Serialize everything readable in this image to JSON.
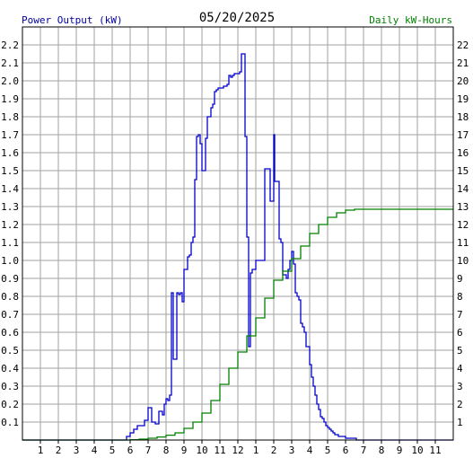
{
  "header": {
    "left_label": "Power Output (kW)",
    "date": "05/20/2025",
    "right_label": "Daily kW-Hours"
  },
  "colors": {
    "left_label": "#0000a0",
    "right_label": "#008000",
    "power_line": "#0000c8",
    "energy_line": "#008000",
    "grid": "#a0a0a0",
    "frame": "#000000"
  },
  "chart_data": {
    "type": "line",
    "title": "05/20/2025",
    "xlabel": "",
    "ylabel": "Power Output (kW)",
    "y2label": "Daily kW-Hours",
    "x_tick_labels": [
      "1",
      "2",
      "3",
      "4",
      "5",
      "6",
      "7",
      "8",
      "9",
      "10",
      "11",
      "12",
      "1",
      "2",
      "3",
      "4",
      "5",
      "6",
      "7",
      "8",
      "9",
      "10",
      "11"
    ],
    "xlim": [
      0,
      24
    ],
    "ylim": [
      0,
      2.3
    ],
    "y_ticks": [
      "0.1",
      "0.2",
      "0.3",
      "0.4",
      "0.5",
      "0.6",
      "0.7",
      "0.8",
      "0.9",
      "1.0",
      "1.1",
      "1.2",
      "1.3",
      "1.4",
      "1.5",
      "1.6",
      "1.7",
      "1.8",
      "1.9",
      "2.0",
      "2.1",
      "2.2"
    ],
    "y2lim": [
      0,
      23
    ],
    "y2_ticks": [
      "1",
      "2",
      "3",
      "4",
      "5",
      "6",
      "7",
      "8",
      "9",
      "10",
      "11",
      "12",
      "13",
      "14",
      "15",
      "16",
      "17",
      "18",
      "19",
      "20",
      "21",
      "22"
    ],
    "grid": true,
    "series": [
      {
        "axis": "left",
        "x": [
          0,
          5.5,
          5.8,
          6.0,
          6.1,
          6.2,
          6.4,
          6.6,
          6.8,
          7.0,
          7.2,
          7.4,
          7.6,
          7.8,
          7.9,
          8.0,
          8.1,
          8.2,
          8.3,
          8.4,
          8.5,
          8.6,
          8.7,
          8.8,
          8.9,
          9.0,
          9.2,
          9.3,
          9.4,
          9.5,
          9.6,
          9.7,
          9.8,
          9.9,
          10.0,
          10.1,
          10.2,
          10.3,
          10.5,
          10.6,
          10.7,
          10.8,
          10.9,
          11.0,
          11.2,
          11.4,
          11.5,
          11.6,
          11.7,
          11.8,
          11.9,
          12.0,
          12.1,
          12.2,
          12.3,
          12.4,
          12.5,
          12.6,
          12.7,
          12.8,
          13.0,
          13.5,
          13.8,
          14.0,
          14.05,
          14.3,
          14.4,
          14.5,
          14.7,
          14.8,
          14.9,
          15.0,
          15.1,
          15.2,
          15.3,
          15.4,
          15.5,
          15.6,
          15.7,
          15.8,
          16.0,
          16.1,
          16.2,
          16.3,
          16.4,
          16.5,
          16.6,
          16.7,
          16.8,
          16.9,
          17.0,
          17.1,
          17.2,
          17.3,
          17.4,
          17.5,
          17.6,
          17.8,
          18.0,
          18.2,
          18.4,
          18.6,
          18.8,
          19.0,
          19.2,
          19.4,
          19.6,
          19.8,
          20.0,
          20.3,
          20.6,
          21.0,
          24.0
        ],
        "values": [
          0,
          0,
          0.02,
          0.04,
          0.04,
          0.06,
          0.08,
          0.08,
          0.11,
          0.18,
          0.1,
          0.09,
          0.16,
          0.14,
          0.2,
          0.23,
          0.22,
          0.25,
          0.82,
          0.45,
          0.45,
          0.82,
          0.81,
          0.82,
          0.77,
          0.95,
          1.02,
          1.03,
          1.1,
          1.13,
          1.45,
          1.69,
          1.7,
          1.65,
          1.5,
          1.5,
          1.68,
          1.8,
          1.85,
          1.87,
          1.94,
          1.95,
          1.96,
          1.96,
          1.97,
          1.98,
          2.03,
          2.02,
          2.03,
          2.04,
          2.04,
          2.04,
          2.05,
          2.15,
          2.15,
          1.69,
          1.13,
          0.52,
          0.93,
          0.95,
          1.0,
          1.51,
          1.33,
          1.7,
          1.44,
          1.12,
          1.1,
          0.92,
          0.9,
          0.95,
          1.0,
          1.05,
          0.98,
          0.82,
          0.8,
          0.78,
          0.65,
          0.63,
          0.6,
          0.52,
          0.42,
          0.35,
          0.3,
          0.25,
          0.2,
          0.17,
          0.13,
          0.12,
          0.1,
          0.08,
          0.07,
          0.06,
          0.05,
          0.04,
          0.03,
          0.03,
          0.02,
          0.02,
          0.01,
          0.01,
          0.01,
          0,
          0,
          0,
          0,
          0,
          0,
          0,
          0,
          0,
          0,
          0,
          0
        ],
        "color": "#0000c8"
      },
      {
        "axis": "right",
        "x": [
          0,
          5.5,
          6,
          6.5,
          7,
          7.5,
          8,
          8.5,
          9,
          9.5,
          10,
          10.5,
          11,
          11.5,
          12,
          12.5,
          13,
          13.5,
          14,
          14.5,
          15,
          15.5,
          16,
          16.5,
          17,
          17.5,
          18,
          18.5,
          19,
          19.5,
          20,
          21,
          22,
          23,
          24
        ],
        "values": [
          0,
          0,
          0.02,
          0.05,
          0.1,
          0.17,
          0.27,
          0.4,
          0.65,
          1.0,
          1.5,
          2.2,
          3.1,
          4.0,
          4.9,
          5.8,
          6.8,
          7.9,
          8.9,
          9.4,
          10.1,
          10.8,
          11.5,
          12.0,
          12.4,
          12.65,
          12.8,
          12.85,
          12.85,
          12.85,
          12.85,
          12.85,
          12.85,
          12.85,
          12.85
        ],
        "color": "#008000"
      }
    ]
  }
}
